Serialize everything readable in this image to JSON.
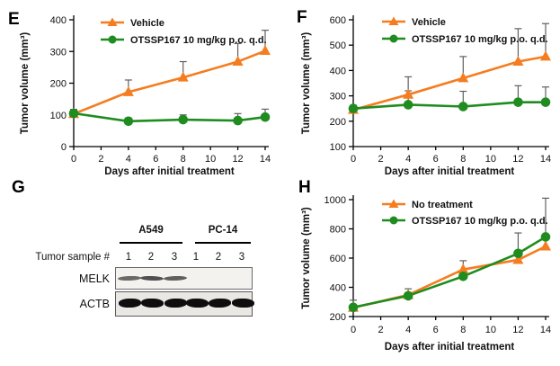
{
  "figure": {
    "background": "#ffffff",
    "colors": {
      "vehicle_orange": "#F57D20",
      "otssp_green": "#1F8C1F",
      "error_bar_gray": "#606060",
      "axis_black": "#000000"
    }
  },
  "panels": {
    "E": {
      "letter": "E"
    },
    "F": {
      "letter": "F"
    },
    "G": {
      "letter": "G"
    },
    "H": {
      "letter": "H"
    }
  },
  "chart_data": [
    {
      "panel": "E",
      "type": "line",
      "title": "",
      "xlabel": "Days after initial treatment",
      "ylabel": "Tumor volume (mm³)",
      "x": [
        0,
        4,
        8,
        12,
        14
      ],
      "xticks": [
        0,
        2,
        4,
        6,
        8,
        10,
        12,
        14
      ],
      "ylim": [
        0,
        400
      ],
      "yticks": [
        0,
        100,
        200,
        300,
        400
      ],
      "grid": false,
      "legend_position": "top-left",
      "series": [
        {
          "name": "Vehicle",
          "color": "#F57D20",
          "marker": "triangle",
          "values": [
            103,
            172,
            218,
            268,
            302
          ],
          "err_up": [
            14,
            38,
            50,
            57,
            65
          ]
        },
        {
          "name": "OTSSP167  10 mg/kg p.o. q.d.",
          "color": "#1F8C1F",
          "marker": "circle",
          "values": [
            105,
            80,
            85,
            82,
            93
          ],
          "err_up": [
            12,
            10,
            15,
            22,
            25
          ]
        }
      ]
    },
    {
      "panel": "F",
      "type": "line",
      "title": "",
      "xlabel": "Days after initial treatment",
      "ylabel": "Tumor volume (mm³)",
      "x": [
        0,
        4,
        8,
        12,
        14
      ],
      "xticks": [
        0,
        2,
        4,
        6,
        8,
        10,
        12,
        14
      ],
      "ylim": [
        100,
        600
      ],
      "yticks": [
        100,
        200,
        300,
        400,
        500,
        600
      ],
      "grid": false,
      "legend_position": "top-left",
      "series": [
        {
          "name": "Vehicle",
          "color": "#F57D20",
          "marker": "triangle",
          "values": [
            245,
            305,
            370,
            435,
            455
          ],
          "err_up": [
            18,
            70,
            85,
            130,
            130
          ]
        },
        {
          "name": "OTSSP167  10 mg/kg p.o. q.d.",
          "color": "#1F8C1F",
          "marker": "circle",
          "values": [
            250,
            265,
            258,
            275,
            275
          ],
          "err_up": [
            12,
            55,
            60,
            65,
            60
          ]
        }
      ]
    },
    {
      "panel": "H",
      "type": "line",
      "title": "",
      "xlabel": "Days after initial treatment",
      "ylabel": "Tumor volume (mm³)",
      "x": [
        0,
        4,
        8,
        12,
        14
      ],
      "xticks": [
        0,
        2,
        4,
        6,
        8,
        10,
        12,
        14
      ],
      "ylim": [
        200,
        1000
      ],
      "yticks": [
        200,
        400,
        600,
        800,
        1000
      ],
      "grid": false,
      "legend_position": "top-left",
      "series": [
        {
          "name": "No treatment",
          "color": "#F57D20",
          "marker": "triangle",
          "values": [
            260,
            348,
            522,
            588,
            680
          ],
          "err_up": [
            52,
            42,
            60,
            25,
            0
          ]
        },
        {
          "name": "OTSSP167  10 mg/kg p.o. q.d.",
          "color": "#1F8C1F",
          "marker": "circle",
          "values": [
            263,
            342,
            475,
            632,
            745
          ],
          "err_up": [
            0,
            0,
            0,
            140,
            265
          ]
        }
      ]
    }
  ],
  "western_blot": {
    "panel": "G",
    "row_label": "Tumor sample #",
    "groups": [
      {
        "name": "A549"
      },
      {
        "name": "PC-14"
      }
    ],
    "lanes": [
      "1",
      "2",
      "3",
      "1",
      "2",
      "3"
    ],
    "blots": [
      {
        "protein": "MELK",
        "band_intensities": [
          0.8,
          0.95,
          0.85,
          0,
          0,
          0
        ]
      },
      {
        "protein": "ACTB",
        "band_intensities": [
          1,
          1,
          1,
          1,
          1,
          1
        ]
      }
    ]
  }
}
